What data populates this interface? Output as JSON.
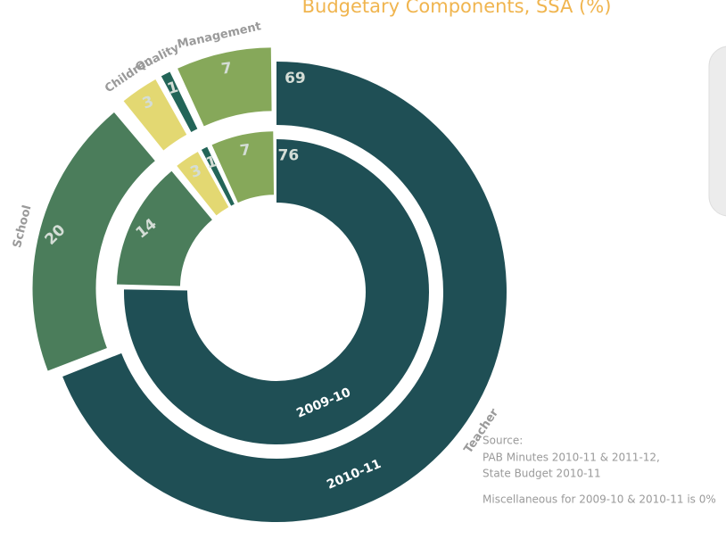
{
  "chart_data": {
    "type": "nested-donut",
    "title": "Budgetary Components, SSA (%)",
    "categories": [
      "Teacher",
      "School",
      "Children",
      "Quality",
      "Management"
    ],
    "colors": [
      "#1f4f55",
      "#4b7d5b",
      "#e3d872",
      "#236558",
      "#86a85a"
    ],
    "series": [
      {
        "name": "2009-10",
        "values": [
          76,
          14,
          3,
          1,
          7
        ]
      },
      {
        "name": "2010-11",
        "values": [
          69,
          20,
          3,
          1,
          7
        ]
      }
    ],
    "source": [
      "Source:",
      "PAB Minutes 2010-11 & 2011-12,",
      "State Budget 2010-11"
    ],
    "note": "Miscellaneous for 2009-10 & 2010-11 is 0%"
  }
}
